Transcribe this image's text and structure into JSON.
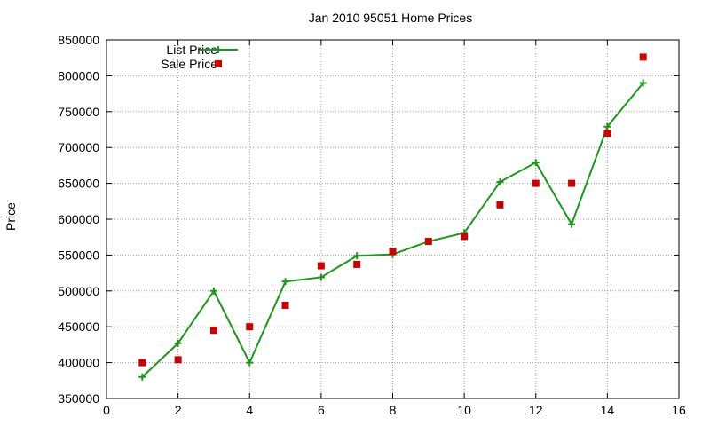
{
  "chart_data": {
    "type": "line",
    "title": "Jan 2010 95051 Home Prices",
    "xlabel": "",
    "ylabel": "Price",
    "xlim": [
      0,
      16
    ],
    "ylim": [
      350000,
      850000
    ],
    "x_ticks": [
      "0",
      "2",
      "4",
      "6",
      "8",
      "10",
      "12",
      "14",
      "16"
    ],
    "y_ticks": [
      "350000",
      "400000",
      "450000",
      "500000",
      "550000",
      "600000",
      "650000",
      "700000",
      "750000",
      "800000",
      "850000"
    ],
    "grid": true,
    "legend_position": "top-left",
    "series": [
      {
        "name": "List Price",
        "style": "line-with-plus-markers",
        "color": "#1a9a1a",
        "x": [
          1,
          2,
          3,
          4,
          5,
          6,
          7,
          8,
          9,
          10,
          11,
          12,
          13,
          14,
          15
        ],
        "values": [
          380000,
          427000,
          500000,
          400000,
          513000,
          519000,
          549000,
          551000,
          569000,
          581000,
          652000,
          679000,
          593000,
          729000,
          790000
        ]
      },
      {
        "name": "Sale Price",
        "style": "square-points",
        "color": "#cc0000",
        "x": [
          1,
          2,
          3,
          4,
          5,
          6,
          7,
          8,
          9,
          10,
          11,
          12,
          13,
          14,
          15
        ],
        "values": [
          400000,
          404000,
          445000,
          450000,
          480000,
          535000,
          537000,
          555000,
          569000,
          576000,
          620000,
          650000,
          650000,
          720000,
          826000
        ]
      }
    ]
  }
}
